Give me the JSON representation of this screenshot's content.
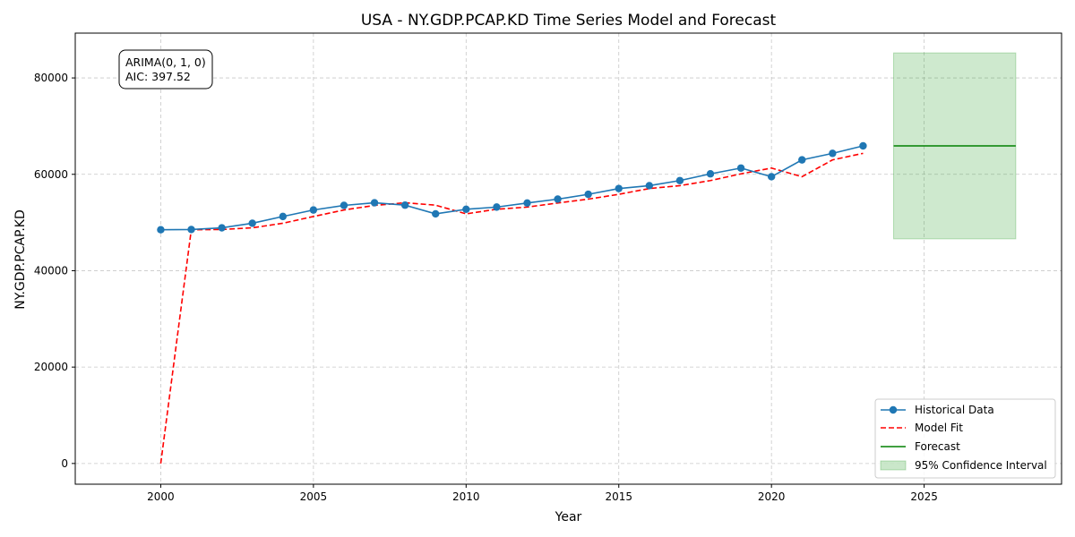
{
  "chart_data": {
    "type": "line",
    "title": "USA - NY.GDP.PCAP.KD Time Series Model and Forecast",
    "xlabel": "Year",
    "ylabel": "NY.GDP.PCAP.KD",
    "xlim": [
      1997.2,
      2029.5
    ],
    "ylim": [
      -4300,
      89300
    ],
    "xticks": [
      2000,
      2005,
      2010,
      2015,
      2020,
      2025
    ],
    "yticks": [
      0,
      20000,
      40000,
      60000,
      80000
    ],
    "grid": true,
    "legend_position": "bottom-right",
    "annotation": {
      "lines": [
        "ARIMA(0, 1, 0)",
        "AIC: 397.52"
      ]
    },
    "series": [
      {
        "name": "Historical Data",
        "style": "line-marker",
        "color": "#1f77b4",
        "x": [
          2000,
          2001,
          2002,
          2003,
          2004,
          2005,
          2006,
          2007,
          2008,
          2009,
          2010,
          2011,
          2012,
          2013,
          2014,
          2015,
          2016,
          2017,
          2018,
          2019,
          2020,
          2021,
          2022,
          2023
        ],
        "y": [
          48500,
          48550,
          48900,
          49850,
          51250,
          52600,
          53550,
          54100,
          53600,
          51800,
          52750,
          53200,
          54050,
          54850,
          55850,
          57050,
          57650,
          58700,
          60100,
          61300,
          59500,
          63000,
          64350,
          65900
        ]
      },
      {
        "name": "Model Fit",
        "style": "dashed",
        "color": "#ff0000",
        "x": [
          2000,
          2001,
          2002,
          2003,
          2004,
          2005,
          2006,
          2007,
          2008,
          2009,
          2010,
          2011,
          2012,
          2013,
          2014,
          2015,
          2016,
          2017,
          2018,
          2019,
          2020,
          2021,
          2022,
          2023
        ],
        "y": [
          0,
          48500,
          48550,
          48900,
          49850,
          51250,
          52600,
          53550,
          54100,
          53600,
          51800,
          52750,
          53200,
          54050,
          54850,
          55850,
          57050,
          57650,
          58700,
          60100,
          61300,
          59500,
          63000,
          64350
        ]
      },
      {
        "name": "Forecast",
        "style": "line",
        "color": "#008000",
        "x": [
          2024,
          2028
        ],
        "y": [
          65900,
          65900
        ]
      }
    ],
    "confidence_interval": {
      "name": "95% Confidence Interval",
      "color": "#2ca02c",
      "x": [
        2024,
        2028
      ],
      "lower": [
        46600,
        46600
      ],
      "upper": [
        85200,
        85200
      ]
    }
  }
}
